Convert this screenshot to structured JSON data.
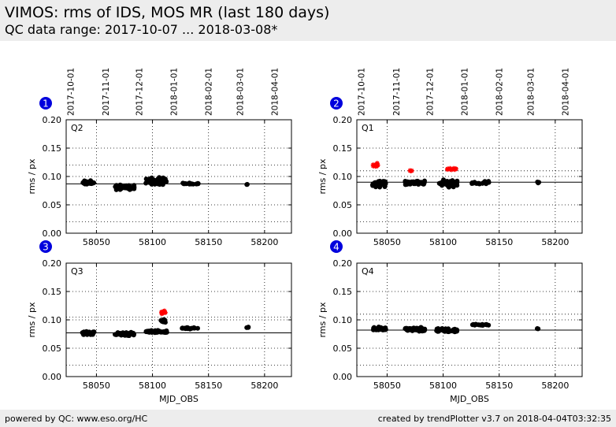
{
  "header": {
    "title": "VIMOS: rms of IDS, MOS MR (last 180 days)",
    "subtitle": "QC data range: 2017-10-07 ... 2018-03-08*"
  },
  "footer": {
    "left": "powered by QC: www.eso.org/HC",
    "right": "created by trendPlotter v3.7 on 2018-04-04T03:32:35"
  },
  "colors": {
    "point": "#000000",
    "outlier": "#ff0000",
    "badge": "#0000dd",
    "header_bg": "#ededed"
  },
  "chart_data": [
    {
      "type": "scatter",
      "badge": "1",
      "quadrant": "Q2",
      "ylabel": "rms / px",
      "xlabel": "",
      "xlim": [
        58023,
        58224
      ],
      "ylim": [
        0.0,
        0.2
      ],
      "yticks": [
        "0.00",
        "0.05",
        "0.10",
        "0.15",
        "0.20"
      ],
      "yticks_values": [
        0,
        0.05,
        0.1,
        0.15,
        0.2
      ],
      "xticks": [
        "58050",
        "58100",
        "58150",
        "58200"
      ],
      "xticks_values": [
        58050,
        58100,
        58150,
        58200
      ],
      "date_ticks": [
        "2017-10-01",
        "2017-11-01",
        "2017-12-01",
        "2018-01-01",
        "2018-02-01",
        "2018-03-01",
        "2018-04-01"
      ],
      "date_ticks_mjd": [
        58027,
        58058,
        58088,
        58119,
        58150,
        58178,
        58209
      ],
      "reference_line": 0.087,
      "threshold_lines": [
        0.02,
        0.12
      ],
      "clusters": [
        {
          "x_range": [
            58037,
            58048
          ],
          "y": 0.089,
          "spread": 0.005,
          "count": 30
        },
        {
          "x_range": [
            58066,
            58084
          ],
          "y": 0.081,
          "spread": 0.006,
          "count": 55
        },
        {
          "x_range": [
            58094,
            58113
          ],
          "y": 0.092,
          "spread": 0.009,
          "count": 55
        },
        {
          "x_range": [
            58125,
            58141
          ],
          "y": 0.087,
          "spread": 0.002,
          "count": 18
        },
        {
          "x_range": [
            58184,
            58186
          ],
          "y": 0.086,
          "spread": 0.002,
          "count": 3
        }
      ],
      "outliers": []
    },
    {
      "type": "scatter",
      "badge": "2",
      "quadrant": "Q1",
      "ylabel": "rms / px",
      "xlabel": "",
      "xlim": [
        58023,
        58224
      ],
      "ylim": [
        0.0,
        0.2
      ],
      "yticks": [
        "0.00",
        "0.05",
        "0.10",
        "0.15",
        "0.20"
      ],
      "yticks_values": [
        0,
        0.05,
        0.1,
        0.15,
        0.2
      ],
      "xticks": [
        "58050",
        "58100",
        "58150",
        "58200"
      ],
      "xticks_values": [
        58050,
        58100,
        58150,
        58200
      ],
      "date_ticks": [
        "2017-10-01",
        "2017-11-01",
        "2017-12-01",
        "2018-01-01",
        "2018-02-01",
        "2018-03-01",
        "2018-04-01"
      ],
      "date_ticks_mjd": [
        58027,
        58058,
        58088,
        58119,
        58150,
        58178,
        58209
      ],
      "reference_line": 0.09,
      "threshold_lines": [
        0.02,
        0.11
      ],
      "clusters": [
        {
          "x_range": [
            58037,
            58049
          ],
          "y": 0.088,
          "spread": 0.008,
          "count": 50
        },
        {
          "x_range": [
            58066,
            58084
          ],
          "y": 0.089,
          "spread": 0.005,
          "count": 55
        },
        {
          "x_range": [
            58096,
            58113
          ],
          "y": 0.088,
          "spread": 0.008,
          "count": 45
        },
        {
          "x_range": [
            58125,
            58141
          ],
          "y": 0.089,
          "spread": 0.004,
          "count": 20
        },
        {
          "x_range": [
            58184,
            58186
          ],
          "y": 0.09,
          "spread": 0.003,
          "count": 3
        }
      ],
      "outliers": [
        {
          "x_range": [
            58037,
            58042
          ],
          "y": 0.12,
          "spread": 0.006,
          "count": 12
        },
        {
          "x_range": [
            58070,
            58073
          ],
          "y": 0.11,
          "spread": 0.001,
          "count": 3
        },
        {
          "x_range": [
            58103,
            58112
          ],
          "y": 0.113,
          "spread": 0.002,
          "count": 12
        }
      ]
    },
    {
      "type": "scatter",
      "badge": "3",
      "quadrant": "Q3",
      "ylabel": "rms / px",
      "xlabel": "MJD_OBS",
      "xlim": [
        58023,
        58224
      ],
      "ylim": [
        0.0,
        0.2
      ],
      "yticks": [
        "0.00",
        "0.05",
        "0.10",
        "0.15",
        "0.20"
      ],
      "yticks_values": [
        0,
        0.05,
        0.1,
        0.15,
        0.2
      ],
      "xticks": [
        "58050",
        "58100",
        "58150",
        "58200"
      ],
      "xticks_values": [
        58050,
        58100,
        58150,
        58200
      ],
      "reference_line": 0.077,
      "threshold_lines": [
        0.02,
        0.105
      ],
      "clusters": [
        {
          "x_range": [
            58037,
            58048
          ],
          "y": 0.077,
          "spread": 0.004,
          "count": 35
        },
        {
          "x_range": [
            58066,
            58084
          ],
          "y": 0.075,
          "spread": 0.004,
          "count": 55
        },
        {
          "x_range": [
            58094,
            58113
          ],
          "y": 0.079,
          "spread": 0.003,
          "count": 45
        },
        {
          "x_range": [
            58107,
            58112
          ],
          "y": 0.1,
          "spread": 0.006,
          "count": 10
        },
        {
          "x_range": [
            58125,
            58141
          ],
          "y": 0.085,
          "spread": 0.002,
          "count": 20
        },
        {
          "x_range": [
            58184,
            58186
          ],
          "y": 0.086,
          "spread": 0.002,
          "count": 3
        }
      ],
      "outliers": [
        {
          "x_range": [
            58108,
            58112
          ],
          "y": 0.113,
          "spread": 0.004,
          "count": 10
        }
      ]
    },
    {
      "type": "scatter",
      "badge": "4",
      "quadrant": "Q4",
      "ylabel": "rms / px",
      "xlabel": "MJD_OBS",
      "xlim": [
        58023,
        58224
      ],
      "ylim": [
        0.0,
        0.2
      ],
      "yticks": [
        "0.00",
        "0.05",
        "0.10",
        "0.15",
        "0.20"
      ],
      "yticks_values": [
        0,
        0.05,
        0.1,
        0.15,
        0.2
      ],
      "xticks": [
        "58050",
        "58100",
        "58150",
        "58200"
      ],
      "xticks_values": [
        58050,
        58100,
        58150,
        58200
      ],
      "reference_line": 0.082,
      "threshold_lines": [
        0.02,
        0.11
      ],
      "clusters": [
        {
          "x_range": [
            58037,
            58049
          ],
          "y": 0.084,
          "spread": 0.004,
          "count": 45
        },
        {
          "x_range": [
            58066,
            58084
          ],
          "y": 0.083,
          "spread": 0.005,
          "count": 50
        },
        {
          "x_range": [
            58094,
            58113
          ],
          "y": 0.081,
          "spread": 0.005,
          "count": 50
        },
        {
          "x_range": [
            58125,
            58141
          ],
          "y": 0.091,
          "spread": 0.002,
          "count": 22
        },
        {
          "x_range": [
            58184,
            58186
          ],
          "y": 0.085,
          "spread": 0.002,
          "count": 3
        }
      ],
      "outliers": []
    }
  ]
}
